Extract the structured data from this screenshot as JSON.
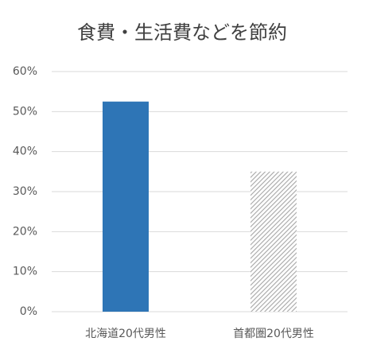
{
  "chart_data": {
    "type": "bar",
    "title": "食費・生活費などを節約",
    "categories": [
      "北海道20代男性",
      "首都圏20代男性"
    ],
    "values": [
      52.5,
      35
    ],
    "bar_styles": [
      {
        "color": "#2e75b6",
        "fill": "solid"
      },
      {
        "color": "#a6a6a6",
        "fill": "hatch"
      }
    ],
    "ylim": [
      0,
      60
    ],
    "yticks": [
      {
        "value": 0,
        "label": "0%"
      },
      {
        "value": 10,
        "label": "10%"
      },
      {
        "value": 20,
        "label": "20%"
      },
      {
        "value": 30,
        "label": "30%"
      },
      {
        "value": 40,
        "label": "40%"
      },
      {
        "value": 50,
        "label": "50%"
      },
      {
        "value": 60,
        "label": "60%"
      }
    ],
    "grid": true
  }
}
